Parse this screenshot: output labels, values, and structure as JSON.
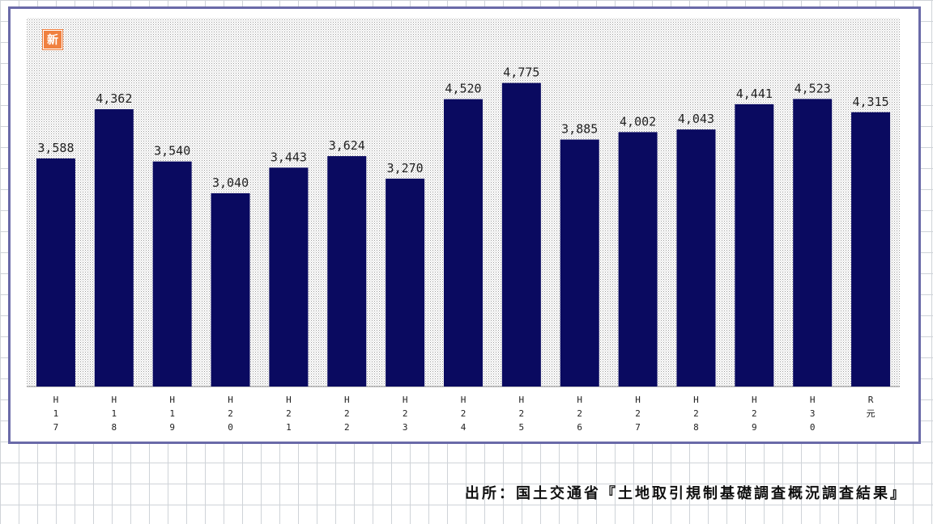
{
  "badge_text": "新",
  "source": "出所：国土交通省『土地取引規制基礎調査概況調査結果』",
  "colors": {
    "bar": "#0a0a60",
    "frame": "#6a6aa8",
    "badge": "#f08040",
    "plot_pattern_dot": "#9a9a9a"
  },
  "chart_data": {
    "type": "bar",
    "categories": [
      "H17",
      "H18",
      "H19",
      "H20",
      "H21",
      "H22",
      "H23",
      "H24",
      "H25",
      "H26",
      "H27",
      "H28",
      "H29",
      "H30",
      "R元"
    ],
    "values": [
      3588,
      4362,
      3540,
      3040,
      3443,
      3624,
      3270,
      4520,
      4775,
      3885,
      4002,
      4043,
      4441,
      4523,
      4315
    ],
    "value_labels": [
      "3,588",
      "4,362",
      "3,540",
      "3,040",
      "3,443",
      "3,624",
      "3,270",
      "4,520",
      "4,775",
      "3,885",
      "4,002",
      "4,043",
      "4,441",
      "4,523",
      "4,315"
    ],
    "ylim": [
      0,
      5800
    ],
    "grid": false,
    "title": "",
    "xlabel": "",
    "ylabel": ""
  }
}
